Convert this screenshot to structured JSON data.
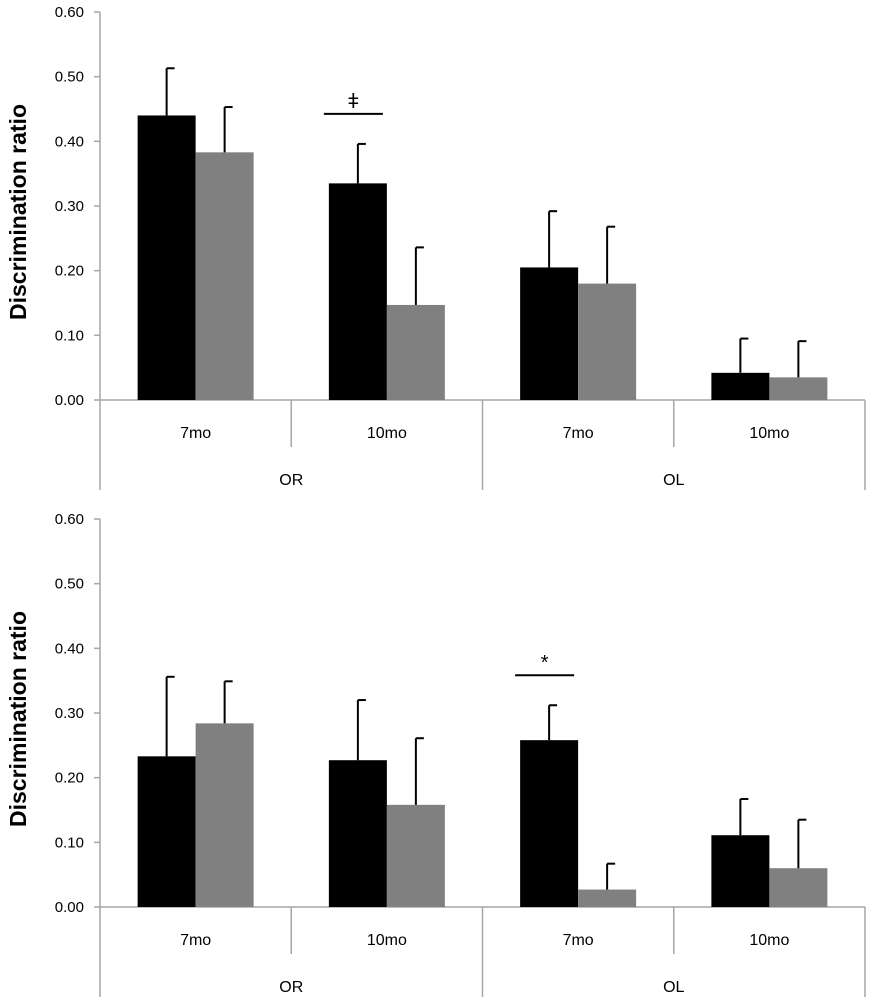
{
  "chart_data": [
    {
      "type": "bar",
      "ylabel": "Discrimination ratio",
      "ylim": [
        0,
        0.6
      ],
      "yticks": [
        "0.00",
        "0.10",
        "0.20",
        "0.30",
        "0.40",
        "0.50",
        "0.60"
      ],
      "groups": [
        {
          "label": "OR",
          "categories": [
            "7mo",
            "10mo"
          ]
        },
        {
          "label": "OL",
          "categories": [
            "7mo",
            "10mo"
          ]
        }
      ],
      "series": [
        {
          "name": "series-1",
          "color": "#000000",
          "values": [
            0.44,
            0.335,
            0.205,
            0.042
          ],
          "errors": [
            0.073,
            0.061,
            0.087,
            0.053
          ]
        },
        {
          "name": "series-2",
          "color": "#808080",
          "values": [
            0.383,
            0.147,
            0.18,
            0.035
          ],
          "errors": [
            0.07,
            0.089,
            0.088,
            0.056
          ]
        }
      ],
      "annotations": [
        {
          "category_index": 1,
          "symbol": "ǂ"
        }
      ]
    },
    {
      "type": "bar",
      "ylabel": "Discrimination ratio",
      "ylim": [
        0,
        0.6
      ],
      "yticks": [
        "0.00",
        "0.10",
        "0.20",
        "0.30",
        "0.40",
        "0.50",
        "0.60"
      ],
      "groups": [
        {
          "label": "OR",
          "categories": [
            "7mo",
            "10mo"
          ]
        },
        {
          "label": "OL",
          "categories": [
            "7mo",
            "10mo"
          ]
        }
      ],
      "series": [
        {
          "name": "series-1",
          "color": "#000000",
          "values": [
            0.233,
            0.227,
            0.258,
            0.111
          ],
          "errors": [
            0.123,
            0.093,
            0.054,
            0.056
          ]
        },
        {
          "name": "series-2",
          "color": "#808080",
          "values": [
            0.284,
            0.158,
            0.027,
            0.06
          ],
          "errors": [
            0.065,
            0.103,
            0.04,
            0.075
          ]
        }
      ],
      "annotations": [
        {
          "category_index": 2,
          "symbol": "*"
        }
      ]
    }
  ]
}
